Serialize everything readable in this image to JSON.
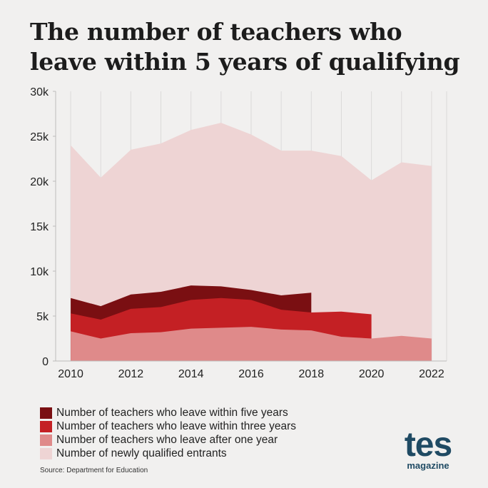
{
  "title": "The number of teachers who leave within 5 years of qualifying",
  "source": "Source: Department for Education",
  "logo": {
    "brand": "tes",
    "sub": "magazine"
  },
  "colors": {
    "five_years": "#7a0f12",
    "three_years": "#c42024",
    "one_year": "#df8a8a",
    "entrants": "#eed4d4",
    "background": "#f1f0ef",
    "logo": "#1f4a63"
  },
  "chart_data": {
    "type": "area",
    "x": [
      2010,
      2011,
      2012,
      2013,
      2014,
      2015,
      2016,
      2017,
      2018,
      2019,
      2020,
      2021,
      2022
    ],
    "series": [
      {
        "name": "Number of newly qualified entrants",
        "color": "#eed4d4",
        "values": [
          24000,
          20400,
          23500,
          24200,
          25700,
          26500,
          25200,
          23400,
          23400,
          22800,
          20100,
          22100,
          21700
        ]
      },
      {
        "name": "Number of teachers who leave within five years",
        "color": "#7a0f12",
        "values": [
          7000,
          6100,
          7400,
          7700,
          8400,
          8300,
          7900,
          7300,
          7600,
          null,
          null,
          null,
          null
        ]
      },
      {
        "name": "Number of teachers who leave within three years",
        "color": "#c42024",
        "values": [
          5300,
          4600,
          5800,
          6000,
          6800,
          7000,
          6800,
          5700,
          5400,
          5500,
          5200,
          null,
          null
        ]
      },
      {
        "name": "Number of teachers who leave after one year",
        "color": "#df8a8a",
        "values": [
          3300,
          2500,
          3100,
          3200,
          3600,
          3700,
          3800,
          3500,
          3400,
          2700,
          2500,
          2800,
          2500
        ]
      }
    ],
    "ylim": [
      0,
      30000
    ],
    "yticks": [
      0,
      5000,
      10000,
      15000,
      20000,
      25000,
      30000
    ],
    "ytick_labels": [
      "0",
      "5k",
      "10k",
      "15k",
      "20k",
      "25k",
      "30k"
    ],
    "xticks": [
      2010,
      2012,
      2014,
      2016,
      2018,
      2020,
      2022
    ],
    "xtick_labels": [
      "2010",
      "2012",
      "2014",
      "2016",
      "2018",
      "2020",
      "2022"
    ],
    "grid": "vertical",
    "legend": [
      {
        "label": "Number of teachers who leave within five years",
        "color": "#7a0f12"
      },
      {
        "label": "Number of teachers who leave within three years",
        "color": "#c42024"
      },
      {
        "label": "Number of teachers who leave after one year",
        "color": "#df8a8a"
      },
      {
        "label": "Number of newly qualified entrants",
        "color": "#eed4d4"
      }
    ],
    "legend_position": "bottom-left"
  }
}
